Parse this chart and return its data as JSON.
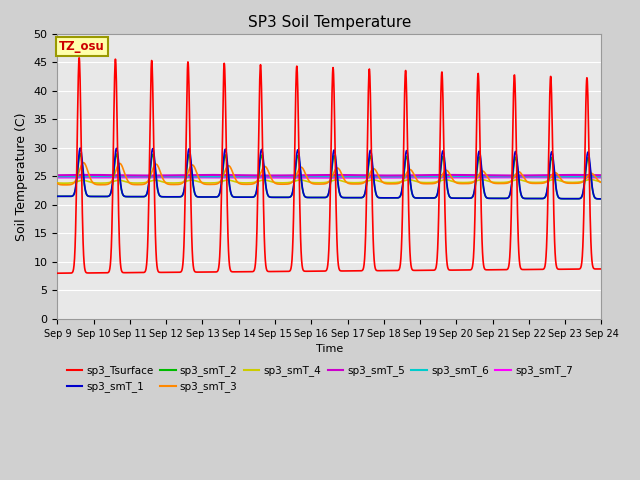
{
  "title": "SP3 Soil Temperature",
  "ylabel": "Soil Temperature (C)",
  "xlabel": "Time",
  "tz_label": "TZ_osu",
  "xlim_days": [
    9,
    24
  ],
  "ylim": [
    0,
    50
  ],
  "yticks": [
    0,
    5,
    10,
    15,
    20,
    25,
    30,
    35,
    40,
    45,
    50
  ],
  "xtick_labels": [
    "Sep 9",
    "Sep 10",
    "Sep 11",
    "Sep 12",
    "Sep 13",
    "Sep 14",
    "Sep 15",
    "Sep 16",
    "Sep 17",
    "Sep 18",
    "Sep 19",
    "Sep 20",
    "Sep 21",
    "Sep 22",
    "Sep 23",
    "Sep 24"
  ],
  "series": {
    "sp3_Tsurface": {
      "color": "#ff0000",
      "lw": 1.2
    },
    "sp3_smT_1": {
      "color": "#0000cc",
      "lw": 1.2
    },
    "sp3_smT_2": {
      "color": "#00bb00",
      "lw": 1.2
    },
    "sp3_smT_3": {
      "color": "#ff8800",
      "lw": 1.2
    },
    "sp3_smT_4": {
      "color": "#cccc00",
      "lw": 1.2
    },
    "sp3_smT_5": {
      "color": "#cc00cc",
      "lw": 1.5
    },
    "sp3_smT_6": {
      "color": "#00cccc",
      "lw": 1.5
    },
    "sp3_smT_7": {
      "color": "#ff00ff",
      "lw": 1.5
    }
  },
  "legend": [
    {
      "label": "sp3_Tsurface",
      "color": "#ff0000"
    },
    {
      "label": "sp3_smT_1",
      "color": "#0000cc"
    },
    {
      "label": "sp3_smT_2",
      "color": "#00bb00"
    },
    {
      "label": "sp3_smT_3",
      "color": "#ff8800"
    },
    {
      "label": "sp3_smT_4",
      "color": "#cccc00"
    },
    {
      "label": "sp3_smT_5",
      "color": "#cc00cc"
    },
    {
      "label": "sp3_smT_6",
      "color": "#00cccc"
    },
    {
      "label": "sp3_smT_7",
      "color": "#ff00ff"
    }
  ],
  "fig_facecolor": "#d0d0d0",
  "ax_facecolor": "#e8e8e8",
  "grid_color": "#ffffff"
}
